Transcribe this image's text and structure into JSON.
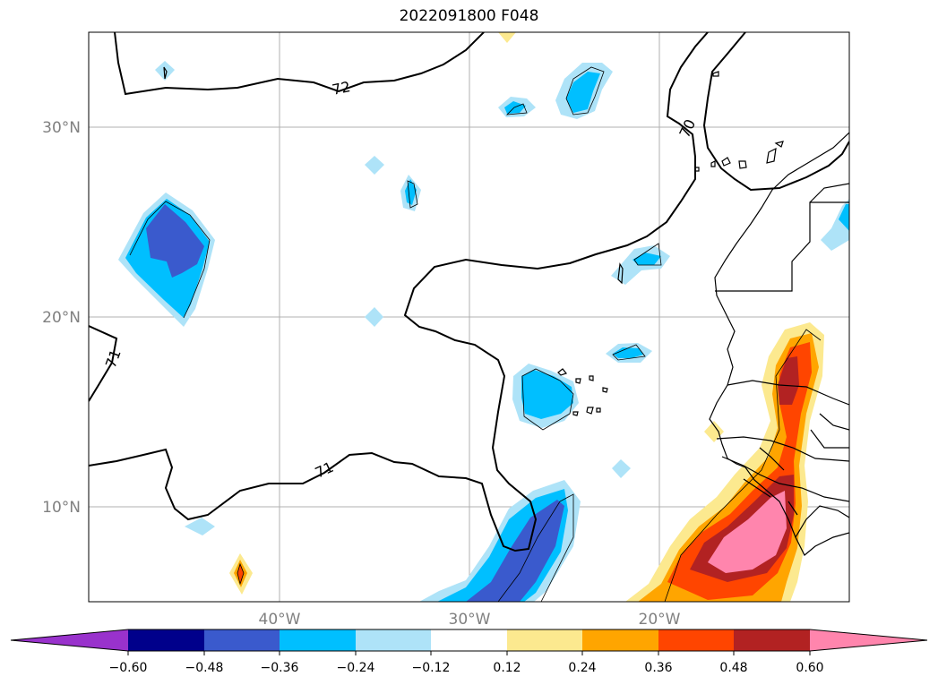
{
  "title": "2022091800 F048",
  "map": {
    "lat_labels": [
      "30°N",
      "20°N",
      "10°N"
    ],
    "lon_labels": [
      "40°W",
      "30°W",
      "20°W"
    ],
    "contour_labels": [
      "72",
      "70",
      "71",
      "71"
    ]
  },
  "colorbar": {
    "ticks": [
      "−0.60",
      "−0.48",
      "−0.36",
      "−0.24",
      "−0.12",
      "0.12",
      "0.24",
      "0.36",
      "0.48",
      "0.60"
    ],
    "colors": [
      "#9932cc",
      "#00008b",
      "#3a5acd",
      "#00bfff",
      "#aee3f8",
      "#ffffff",
      "#fce98f",
      "#ffa500",
      "#ff4500",
      "#b22222",
      "#ff85ad"
    ]
  }
}
